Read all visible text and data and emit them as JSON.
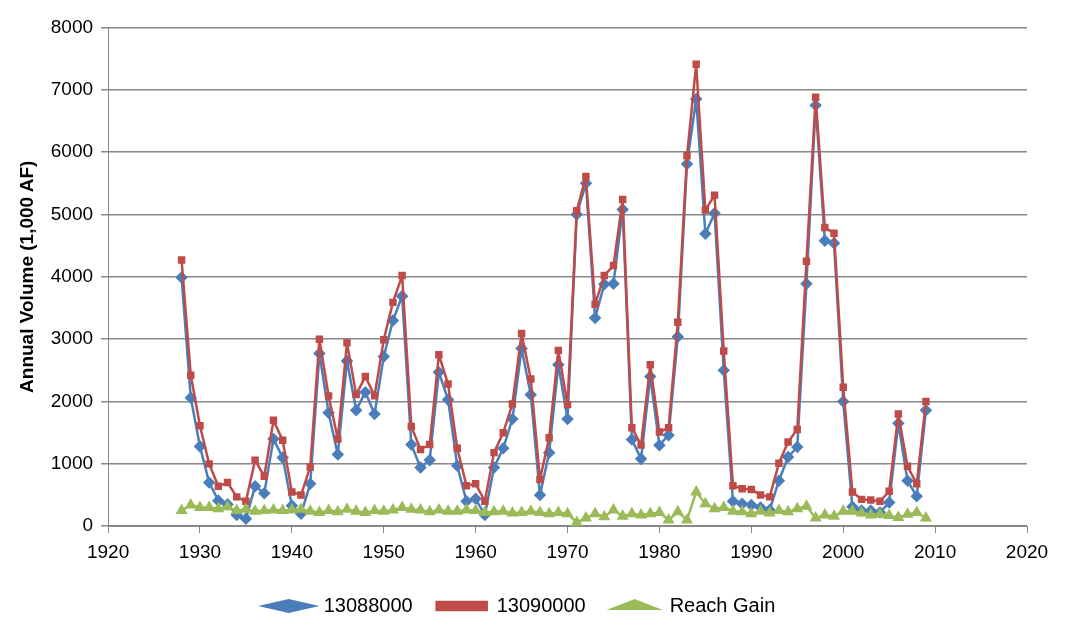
{
  "chart_data": {
    "type": "line",
    "ylabel": "Annual Volume (1,000 AF)",
    "x": [
      1928,
      1929,
      1930,
      1931,
      1932,
      1933,
      1934,
      1935,
      1936,
      1937,
      1938,
      1939,
      1940,
      1941,
      1942,
      1943,
      1944,
      1945,
      1946,
      1947,
      1948,
      1949,
      1950,
      1951,
      1952,
      1953,
      1954,
      1955,
      1956,
      1957,
      1958,
      1959,
      1960,
      1961,
      1962,
      1963,
      1964,
      1965,
      1966,
      1967,
      1968,
      1969,
      1970,
      1971,
      1972,
      1973,
      1974,
      1975,
      1976,
      1977,
      1978,
      1979,
      1980,
      1981,
      1982,
      1983,
      1984,
      1985,
      1986,
      1987,
      1988,
      1989,
      1990,
      1991,
      1992,
      1993,
      1994,
      1995,
      1996,
      1997,
      1998,
      1999,
      2000,
      2001,
      2002,
      2003,
      2004,
      2005,
      2006,
      2007,
      2008,
      2009
    ],
    "series": [
      {
        "name": "13088000",
        "color": "#4a7ebb",
        "marker": "diamond",
        "values": [
          3990,
          2060,
          1280,
          700,
          410,
          350,
          180,
          120,
          640,
          530,
          1400,
          1100,
          330,
          200,
          680,
          2770,
          1820,
          1150,
          2650,
          1860,
          2150,
          1800,
          2720,
          3300,
          3690,
          1310,
          940,
          1060,
          2470,
          2030,
          970,
          400,
          440,
          180,
          940,
          1250,
          1720,
          2850,
          2110,
          500,
          1180,
          2590,
          1720,
          5000,
          5500,
          3340,
          3880,
          3890,
          5080,
          1390,
          1080,
          2400,
          1300,
          1460,
          3040,
          5810,
          6850,
          4690,
          5020,
          2500,
          400,
          360,
          340,
          300,
          260,
          730,
          1110,
          1270,
          3890,
          6750,
          4580,
          4540,
          2000,
          310,
          250,
          250,
          220,
          380,
          1650,
          730,
          480,
          1860
        ]
      },
      {
        "name": "13090000",
        "color": "#be4b48",
        "marker": "square",
        "values": [
          4270,
          2420,
          1610,
          1000,
          640,
          700,
          470,
          400,
          1060,
          800,
          1700,
          1380,
          550,
          500,
          950,
          3000,
          2090,
          1400,
          2940,
          2110,
          2400,
          2090,
          2990,
          3590,
          4020,
          1600,
          1230,
          1310,
          2750,
          2280,
          1250,
          650,
          680,
          400,
          1180,
          1500,
          1960,
          3090,
          2360,
          750,
          1420,
          2820,
          1950,
          5060,
          5610,
          3560,
          4020,
          4180,
          5240,
          1580,
          1300,
          2590,
          1510,
          1580,
          3270,
          5940,
          7410,
          5070,
          5310,
          2810,
          650,
          600,
          590,
          500,
          470,
          1010,
          1350,
          1550,
          4250,
          6880,
          4790,
          4700,
          2230,
          550,
          430,
          420,
          400,
          560,
          1800,
          960,
          680,
          2000
        ]
      },
      {
        "name": "Reach Gain",
        "color": "#9bbb59",
        "marker": "triangle",
        "values": [
          250,
          340,
          300,
          300,
          280,
          310,
          250,
          270,
          240,
          250,
          260,
          250,
          260,
          270,
          240,
          220,
          250,
          230,
          270,
          240,
          220,
          250,
          240,
          260,
          300,
          270,
          260,
          230,
          260,
          240,
          240,
          260,
          250,
          220,
          230,
          240,
          210,
          220,
          240,
          220,
          200,
          220,
          200,
          60,
          130,
          200,
          150,
          260,
          160,
          200,
          180,
          200,
          220,
          100,
          230,
          100,
          550,
          360,
          280,
          300,
          240,
          230,
          200,
          240,
          210,
          250,
          230,
          280,
          320,
          130,
          180,
          160,
          240,
          240,
          210,
          180,
          190,
          170,
          140,
          190,
          220,
          130
        ]
      }
    ],
    "xlim": [
      1920,
      2020
    ],
    "xticks": [
      1920,
      1930,
      1940,
      1950,
      1960,
      1970,
      1980,
      1990,
      2000,
      2010,
      2020
    ],
    "ylim": [
      0,
      8000
    ],
    "yticks": [
      0,
      1000,
      2000,
      3000,
      4000,
      5000,
      6000,
      7000,
      8000
    ],
    "grid": "y",
    "legend": "bottom",
    "line_style": "solid"
  }
}
